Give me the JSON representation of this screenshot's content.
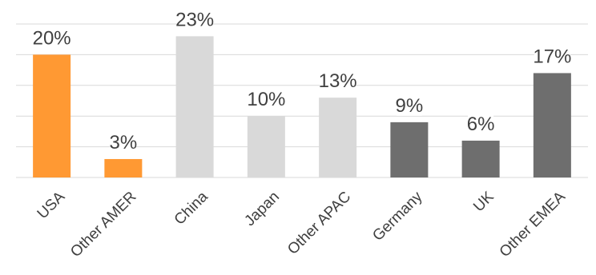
{
  "chart_data": {
    "type": "bar",
    "categories": [
      "USA",
      "Other AMER",
      "China",
      "Japan",
      "Other APAC",
      "Germany",
      "UK",
      "Other EMEA"
    ],
    "values": [
      20,
      3,
      23,
      10,
      13,
      9,
      6,
      17
    ],
    "data_labels": [
      "20%",
      "3%",
      "23%",
      "10%",
      "13%",
      "9%",
      "6%",
      "17%"
    ],
    "value_unit": "%",
    "bar_colors": [
      "#ff9933",
      "#ff9933",
      "#d9d9d9",
      "#d9d9d9",
      "#d9d9d9",
      "#6e6e6e",
      "#6e6e6e",
      "#6e6e6e"
    ],
    "title": "",
    "xlabel": "",
    "ylabel": "",
    "ylim": [
      0,
      25
    ],
    "gridlines": [
      5,
      10,
      15,
      20,
      25
    ],
    "grid": true,
    "legend": "none"
  }
}
